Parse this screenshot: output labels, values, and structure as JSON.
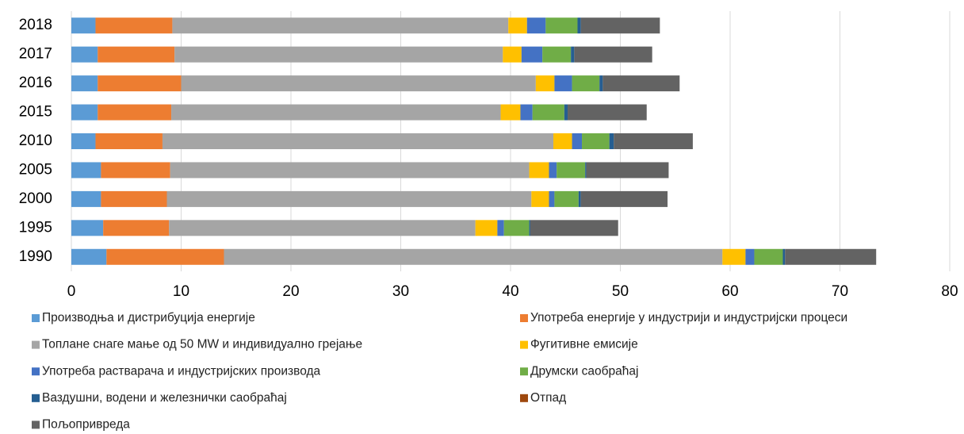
{
  "chart_data": {
    "type": "stacked-bar-horizontal",
    "categories": [
      "2018",
      "2017",
      "2016",
      "2015",
      "2010",
      "2005",
      "2000",
      "1995",
      "1990"
    ],
    "series": [
      {
        "name": "Производња и дистрибуција енергије",
        "color": "#5b9bd5",
        "values": [
          2.2,
          2.4,
          2.4,
          2.4,
          2.2,
          2.7,
          2.7,
          2.9,
          3.2
        ]
      },
      {
        "name": "Употреба енергије у индустрији и индустријски процеси",
        "color": "#ed7d31",
        "values": [
          7.0,
          7.0,
          7.6,
          6.7,
          6.1,
          6.3,
          6.0,
          6.0,
          10.7
        ]
      },
      {
        "name": "Топлане снаге мање од 50 MW и индивидуално грејање",
        "color": "#a5a5a5",
        "values": [
          30.6,
          29.9,
          32.3,
          30.0,
          35.6,
          32.7,
          33.2,
          27.9,
          45.4
        ]
      },
      {
        "name": "Фугитивне емисије",
        "color": "#ffc000",
        "values": [
          1.7,
          1.7,
          1.7,
          1.8,
          1.7,
          1.8,
          1.6,
          2.0,
          2.1
        ]
      },
      {
        "name": "Употреба растварача и индустријских производа",
        "color": "#4472c4",
        "values": [
          1.7,
          1.9,
          1.6,
          1.1,
          0.9,
          0.7,
          0.5,
          0.6,
          0.8
        ]
      },
      {
        "name": "Друмски саобраћај",
        "color": "#70ad47",
        "values": [
          2.9,
          2.6,
          2.5,
          2.9,
          2.5,
          2.6,
          2.2,
          2.3,
          2.6
        ]
      },
      {
        "name": "Ваздушни, водени и железнички саобраћај",
        "color": "#255e91",
        "values": [
          0.3,
          0.3,
          0.3,
          0.3,
          0.4,
          0.1,
          0.2,
          0.1,
          0.2
        ]
      },
      {
        "name": "Отпад",
        "color": "#9e480e",
        "values": [
          0,
          0,
          0,
          0,
          0,
          0,
          0,
          0,
          0
        ]
      },
      {
        "name": "Пољопривреда",
        "color": "#636363",
        "values": [
          7.2,
          7.1,
          7.0,
          7.2,
          7.2,
          7.5,
          7.9,
          8.0,
          8.3
        ]
      }
    ],
    "xlim": [
      0,
      80
    ],
    "xticks": [
      0,
      10,
      20,
      30,
      40,
      50,
      60,
      70,
      80
    ],
    "grid": true
  }
}
